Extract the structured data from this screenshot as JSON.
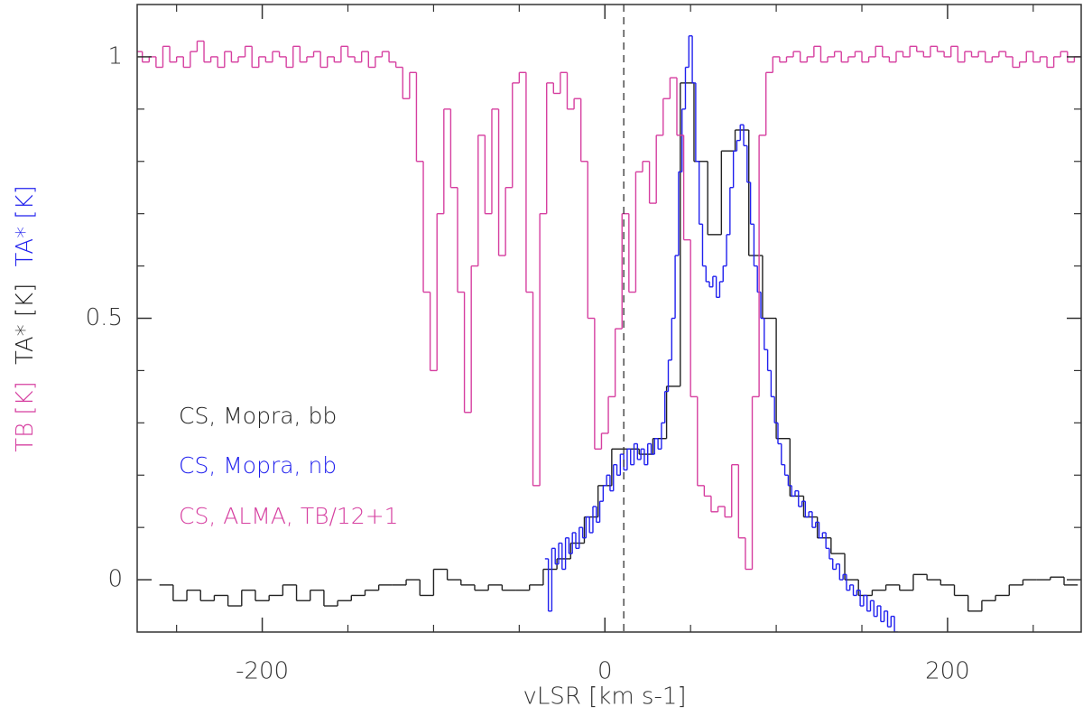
{
  "chart_data": {
    "type": "step",
    "xlabel": "vLSR [km s-1]",
    "ylabel": [
      {
        "text": "TB [K]",
        "color": "#d63fa0"
      },
      {
        "text": "TA* [K]",
        "color": "#222222"
      },
      {
        "text": "TA* [K]",
        "color": "#2020ee"
      }
    ],
    "xlim": [
      -273,
      278
    ],
    "ylim": [
      -0.1,
      1.1
    ],
    "xticks": [
      -200,
      0,
      200
    ],
    "xminor_ticks": [
      -250,
      -150,
      -100,
      -50,
      50,
      100,
      150,
      250
    ],
    "yticks": [
      0,
      0.5,
      1
    ],
    "yminor_ticks": [
      0.1,
      0.2,
      0.3,
      0.4,
      0.6,
      0.7,
      0.8,
      0.9
    ],
    "reference_line_x": 11,
    "series": [
      {
        "name": "CS, Mopra, bb",
        "color": "#222222",
        "x": [
          -256,
          -248,
          -240,
          -232,
          -224,
          -216,
          -208,
          -200,
          -192,
          -184,
          -176,
          -168,
          -160,
          -152,
          -144,
          -136,
          -128,
          -120,
          -112,
          -104,
          -96,
          -88,
          -80,
          -72,
          -64,
          -56,
          -48,
          -40,
          -32,
          -24,
          -16,
          -8,
          0,
          8,
          16,
          24,
          32,
          40,
          48,
          56,
          64,
          72,
          80,
          88,
          96,
          104,
          112,
          120,
          128,
          136,
          144,
          152,
          160,
          168,
          176,
          184,
          192,
          200,
          208,
          216,
          224,
          232,
          240,
          248,
          256,
          264,
          272
        ],
        "values": [
          -0.01,
          -0.04,
          -0.02,
          -0.04,
          -0.03,
          -0.05,
          -0.02,
          -0.04,
          -0.03,
          -0.01,
          -0.04,
          -0.02,
          -0.05,
          -0.04,
          -0.03,
          -0.02,
          -0.01,
          -0.01,
          0.0,
          -0.03,
          0.02,
          0.0,
          -0.01,
          -0.02,
          -0.01,
          -0.02,
          -0.02,
          -0.01,
          0.02,
          0.04,
          0.07,
          0.12,
          0.18,
          0.25,
          0.25,
          0.24,
          0.27,
          0.37,
          0.95,
          0.8,
          0.66,
          0.82,
          0.86,
          0.62,
          0.5,
          0.27,
          0.16,
          0.12,
          0.08,
          0.05,
          0.0,
          -0.03,
          -0.02,
          -0.01,
          -0.02,
          0.01,
          0.0,
          -0.01,
          -0.03,
          -0.06,
          -0.04,
          -0.03,
          -0.01,
          0.0,
          0.0,
          0.005,
          -0.01
        ]
      },
      {
        "name": "CS, Mopra, nb",
        "color": "#2020ee",
        "x": [
          -34,
          -32,
          -30,
          -28,
          -26,
          -24,
          -22,
          -20,
          -18,
          -16,
          -14,
          -12,
          -10,
          -8,
          -6,
          -4,
          -2,
          0,
          2,
          4,
          6,
          8,
          10,
          12,
          14,
          16,
          18,
          20,
          22,
          24,
          26,
          28,
          30,
          32,
          34,
          36,
          38,
          40,
          42,
          44,
          46,
          48,
          50,
          52,
          54,
          56,
          58,
          60,
          62,
          64,
          66,
          68,
          70,
          72,
          74,
          76,
          78,
          80,
          82,
          84,
          86,
          88,
          90,
          92,
          94,
          96,
          98,
          100,
          102,
          104,
          106,
          108,
          110,
          112,
          114,
          116,
          118,
          120,
          122,
          124,
          126,
          128,
          130,
          132,
          134,
          136,
          138,
          140,
          142,
          144,
          146,
          148,
          150,
          152,
          154,
          156,
          158,
          160,
          162,
          164,
          166,
          168,
          170
        ],
        "values": [
          0.04,
          -0.06,
          0.06,
          0.03,
          0.07,
          0.02,
          0.08,
          0.05,
          0.09,
          0.06,
          0.1,
          0.08,
          0.12,
          0.09,
          0.14,
          0.11,
          0.15,
          0.18,
          0.2,
          0.17,
          0.22,
          0.2,
          0.24,
          0.21,
          0.25,
          0.22,
          0.26,
          0.23,
          0.25,
          0.22,
          0.26,
          0.24,
          0.27,
          0.25,
          0.3,
          0.36,
          0.42,
          0.5,
          0.62,
          0.78,
          0.9,
          0.98,
          1.04,
          0.95,
          0.8,
          0.68,
          0.6,
          0.57,
          0.56,
          0.58,
          0.54,
          0.57,
          0.6,
          0.66,
          0.75,
          0.82,
          0.84,
          0.87,
          0.83,
          0.76,
          0.68,
          0.6,
          0.55,
          0.5,
          0.44,
          0.4,
          0.35,
          0.3,
          0.26,
          0.22,
          0.2,
          0.18,
          0.16,
          0.17,
          0.14,
          0.15,
          0.12,
          0.13,
          0.1,
          0.11,
          0.08,
          0.09,
          0.06,
          0.04,
          0.02,
          0.03,
          0.0,
          0.01,
          -0.02,
          -0.01,
          -0.03,
          -0.02,
          -0.05,
          -0.03,
          -0.06,
          -0.04,
          -0.07,
          -0.05,
          -0.08,
          -0.06,
          -0.09,
          -0.07,
          -0.1
        ]
      },
      {
        "name": "CS, ALMA, TB/12+1",
        "color": "#d63fa0",
        "x": [
          -272,
          -268,
          -264,
          -260,
          -256,
          -252,
          -248,
          -244,
          -240,
          -236,
          -232,
          -228,
          -224,
          -220,
          -216,
          -212,
          -208,
          -204,
          -200,
          -196,
          -192,
          -188,
          -184,
          -180,
          -176,
          -172,
          -168,
          -164,
          -160,
          -156,
          -152,
          -148,
          -144,
          -140,
          -136,
          -132,
          -128,
          -124,
          -120,
          -116,
          -112,
          -108,
          -104,
          -100,
          -96,
          -92,
          -88,
          -84,
          -80,
          -76,
          -72,
          -68,
          -64,
          -60,
          -56,
          -52,
          -48,
          -44,
          -40,
          -36,
          -32,
          -28,
          -24,
          -20,
          -16,
          -12,
          -8,
          -4,
          0,
          4,
          8,
          12,
          16,
          20,
          24,
          28,
          32,
          36,
          40,
          44,
          48,
          52,
          56,
          60,
          64,
          68,
          72,
          76,
          80,
          84,
          88,
          92,
          96,
          100,
          104,
          108,
          112,
          116,
          120,
          124,
          128,
          132,
          136,
          140,
          144,
          148,
          152,
          156,
          160,
          164,
          168,
          172,
          176,
          180,
          184,
          188,
          192,
          196,
          200,
          204,
          208,
          212,
          216,
          220,
          224,
          228,
          232,
          236,
          240,
          244,
          248,
          252,
          256,
          260,
          264,
          268,
          272,
          276
        ],
        "values": [
          1.01,
          0.99,
          1.0,
          0.98,
          1.02,
          0.99,
          1.0,
          0.98,
          1.01,
          1.03,
          0.99,
          1.0,
          0.98,
          1.01,
          0.99,
          1.0,
          1.02,
          0.98,
          1.0,
          0.99,
          1.01,
          1.0,
          0.98,
          1.02,
          0.99,
          1.0,
          1.01,
          0.98,
          1.0,
          0.99,
          1.02,
          1.0,
          0.99,
          1.01,
          0.98,
          1.0,
          1.01,
          0.99,
          0.98,
          0.92,
          0.97,
          0.8,
          0.55,
          0.4,
          0.7,
          0.9,
          0.75,
          0.55,
          0.32,
          0.6,
          0.85,
          0.7,
          0.9,
          0.62,
          0.75,
          0.95,
          0.97,
          0.55,
          0.18,
          0.7,
          0.95,
          0.93,
          0.97,
          0.9,
          0.92,
          0.8,
          0.5,
          0.25,
          0.28,
          0.35,
          0.48,
          0.7,
          0.55,
          0.78,
          0.8,
          0.72,
          0.85,
          0.92,
          0.96,
          0.85,
          0.65,
          0.35,
          0.18,
          0.16,
          0.13,
          0.14,
          0.12,
          0.22,
          0.08,
          0.02,
          0.35,
          0.85,
          0.97,
          1.0,
          0.99,
          1.0,
          1.01,
          0.99,
          1.0,
          1.02,
          0.99,
          1.0,
          1.01,
          0.99,
          1.0,
          1.01,
          0.99,
          1.0,
          1.02,
          1.0,
          0.99,
          1.01,
          1.0,
          1.02,
          1.01,
          1.0,
          1.02,
          1.01,
          1.0,
          1.02,
          0.99,
          1.01,
          1.0,
          1.01,
          0.99,
          1.0,
          1.01,
          1.0,
          0.98,
          0.99,
          1.01,
          0.99,
          1.0,
          0.98,
          1.0,
          1.01,
          0.99,
          1.0
        ]
      }
    ]
  }
}
